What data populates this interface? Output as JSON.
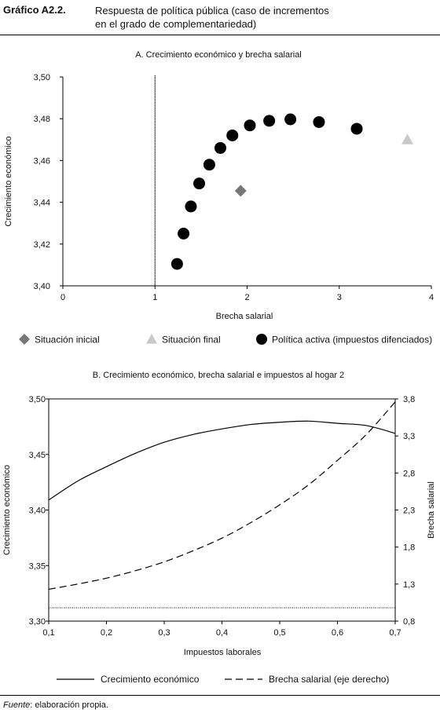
{
  "figure": {
    "number": "Gráfico A2.2.",
    "title_line1": "Respuesta de política pública (caso de incrementos",
    "title_line2": "en el grado de complementariedad)"
  },
  "footnote": {
    "lead": "Fuente",
    "text": ": elaboración propia."
  },
  "chart_data": [
    {
      "type": "scatter",
      "title": "A. Crecimiento económico y brecha salarial",
      "xlabel": "Brecha salarial",
      "ylabel": "Crecimiento económico",
      "xlim": [
        0,
        4
      ],
      "ylim": [
        3.4,
        3.5
      ],
      "x_ticks": [
        "0",
        "1",
        "2",
        "3",
        "4"
      ],
      "y_ticks": [
        "3,40",
        "3,42",
        "3,44",
        "3,46",
        "3,48",
        "3,50"
      ],
      "reference_line_x": 1,
      "grid": false,
      "legend_position": "bottom",
      "series": [
        {
          "name": "Situación inicial",
          "marker": "diamond",
          "color": "#777777",
          "points": [
            [
              1.93,
              3.4455
            ]
          ]
        },
        {
          "name": "Situación final",
          "marker": "triangle",
          "color": "#c8c8c8",
          "points": [
            [
              3.74,
              3.47
            ]
          ]
        },
        {
          "name": "Política activa (impuestos difenciados)",
          "marker": "circle",
          "color": "#000000",
          "points": [
            [
              1.24,
              3.4105
            ],
            [
              1.31,
              3.425
            ],
            [
              1.39,
              3.438
            ],
            [
              1.48,
              3.449
            ],
            [
              1.59,
              3.458
            ],
            [
              1.71,
              3.466
            ],
            [
              1.84,
              3.472
            ],
            [
              2.03,
              3.4768
            ],
            [
              2.24,
              3.479
            ],
            [
              2.47,
              3.4797
            ],
            [
              2.78,
              3.4784
            ],
            [
              3.19,
              3.4752
            ]
          ]
        }
      ]
    },
    {
      "type": "line",
      "title": "B. Crecimiento económico, brecha salarial e impuestos al hogar 2",
      "xlabel": "Impuestos laborales",
      "ylabel": "Crecimiento económico",
      "ylabel_right": "Brecha salarial",
      "xlim": [
        0.1,
        0.7
      ],
      "ylim": [
        3.3,
        3.5
      ],
      "ylim_right": [
        0.8,
        3.8
      ],
      "x_ticks": [
        "0,1",
        "0,2",
        "0,3",
        "0,4",
        "0,5",
        "0,6",
        "0,7"
      ],
      "y_ticks": [
        "3,30",
        "3,35",
        "3,40",
        "3,45",
        "3,50"
      ],
      "y_ticks_right": [
        "0,8",
        "1,3",
        "1,8",
        "2,3",
        "2,8",
        "3,3",
        "3,8"
      ],
      "reference_line_y_right": 0.98,
      "grid": false,
      "legend_position": "bottom",
      "x": [
        0.1,
        0.15,
        0.2,
        0.25,
        0.3,
        0.35,
        0.4,
        0.45,
        0.5,
        0.55,
        0.6,
        0.65,
        0.7
      ],
      "series": [
        {
          "name": "Crecimiento económico",
          "axis": "left",
          "dash": "solid",
          "values": [
            3.409,
            3.426,
            3.439,
            3.451,
            3.461,
            3.468,
            3.473,
            3.477,
            3.479,
            3.48,
            3.478,
            3.476,
            3.469
          ]
        },
        {
          "name": "Brecha salarial (eje derecho)",
          "axis": "right",
          "dash": "dashed",
          "values": [
            1.23,
            1.3,
            1.38,
            1.48,
            1.6,
            1.75,
            1.92,
            2.13,
            2.37,
            2.64,
            2.97,
            3.32,
            3.76
          ]
        }
      ]
    }
  ]
}
